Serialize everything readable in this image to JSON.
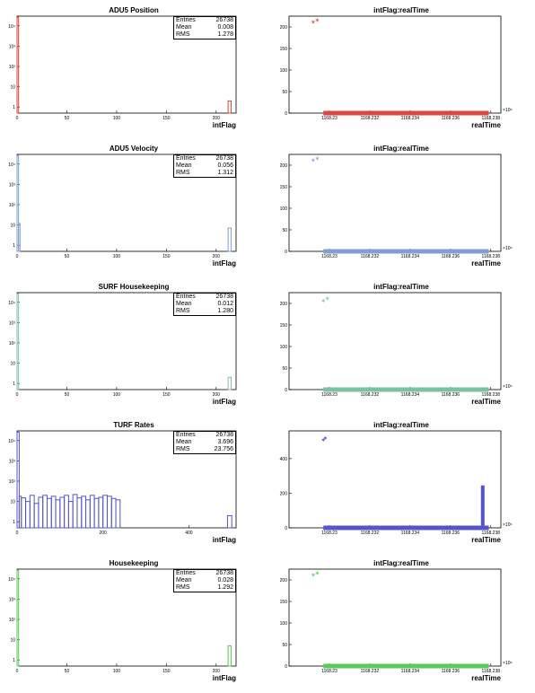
{
  "chart_data": [
    {
      "type": "histogram",
      "id": "h0",
      "title": "ADU5 Position",
      "xlabel": "intFlag",
      "ylabel": "",
      "color": "#d9473e",
      "log_y": true,
      "xlim": [
        0,
        220
      ],
      "ylim": [
        0.5,
        30000
      ],
      "xticks": [
        0,
        50,
        100,
        150,
        200
      ],
      "yticks": [
        {
          "v": 1,
          "t": "1"
        },
        {
          "v": 10,
          "t": "10"
        },
        {
          "v": 100,
          "t": "10²"
        },
        {
          "v": 1000,
          "t": "10³"
        },
        {
          "v": 10000,
          "t": "10⁴"
        }
      ],
      "stats": {
        "Entries": "26738",
        "Mean": "0.008",
        "RMS": "1.278"
      },
      "bins": [
        [
          0,
          1.5,
          26500
        ],
        [
          212,
          215,
          2
        ]
      ]
    },
    {
      "type": "scatter",
      "id": "s0",
      "title": "intFlag:realTime",
      "xlabel": "realTime",
      "color": "#d9473e",
      "xlim": [
        1168.228,
        1168.2385
      ],
      "ylim": [
        0,
        225
      ],
      "xticks": [
        {
          "v": 1168.23,
          "t": "1168.23"
        },
        {
          "v": 1168.232,
          "t": "1168.232"
        },
        {
          "v": 1168.234,
          "t": "1168.234"
        },
        {
          "v": 1168.236,
          "t": "1168.236"
        },
        {
          "v": 1168.238,
          "t": "1168.238"
        }
      ],
      "yticks": [
        0,
        50,
        100,
        150,
        200
      ],
      "x_multiplier": "×10⁶",
      "band": {
        "x": [
          1168.2297,
          1168.2379
        ],
        "y": 0
      },
      "points": [
        [
          1168.2292,
          210
        ],
        [
          1168.2294,
          215
        ]
      ]
    },
    {
      "type": "histogram",
      "id": "h1",
      "title": "ADU5 Velocity",
      "xlabel": "intFlag",
      "color": "#7f9fd5",
      "log_y": true,
      "xlim": [
        0,
        220
      ],
      "ylim": [
        0.5,
        30000
      ],
      "xticks": [
        0,
        50,
        100,
        150,
        200
      ],
      "yticks": [
        {
          "v": 1,
          "t": "1"
        },
        {
          "v": 10,
          "t": "10"
        },
        {
          "v": 100,
          "t": "10²"
        },
        {
          "v": 1000,
          "t": "10³"
        },
        {
          "v": 10000,
          "t": "10⁴"
        }
      ],
      "stats": {
        "Entries": "26738",
        "Mean": "0.056",
        "RMS": "1.312"
      },
      "bins": [
        [
          0,
          1.5,
          26500
        ],
        [
          1.5,
          3,
          12
        ],
        [
          212,
          215,
          7
        ]
      ]
    },
    {
      "type": "scatter",
      "id": "s1",
      "title": "intFlag:realTime",
      "xlabel": "realTime",
      "color": "#7f9fd5",
      "xlim": [
        1168.228,
        1168.2385
      ],
      "ylim": [
        0,
        225
      ],
      "xticks": [
        {
          "v": 1168.23,
          "t": "1168.23"
        },
        {
          "v": 1168.232,
          "t": "1168.232"
        },
        {
          "v": 1168.234,
          "t": "1168.234"
        },
        {
          "v": 1168.236,
          "t": "1168.236"
        },
        {
          "v": 1168.238,
          "t": "1168.238"
        }
      ],
      "yticks": [
        0,
        50,
        100,
        150,
        200
      ],
      "x_multiplier": "×10⁶",
      "band": {
        "x": [
          1168.2297,
          1168.2379
        ],
        "y": 0
      },
      "points": [
        [
          1168.2292,
          210
        ],
        [
          1168.2294,
          215
        ]
      ]
    },
    {
      "type": "histogram",
      "id": "h2",
      "title": "SURF Housekeeping",
      "xlabel": "intFlag",
      "color": "#7cc1a3",
      "log_y": true,
      "xlim": [
        0,
        220
      ],
      "ylim": [
        0.5,
        30000
      ],
      "xticks": [
        0,
        50,
        100,
        150,
        200
      ],
      "yticks": [
        {
          "v": 1,
          "t": "1"
        },
        {
          "v": 10,
          "t": "10"
        },
        {
          "v": 100,
          "t": "10²"
        },
        {
          "v": 1000,
          "t": "10³"
        },
        {
          "v": 10000,
          "t": "10⁴"
        }
      ],
      "stats": {
        "Entries": "26738",
        "Mean": "0.012",
        "RMS": "1.280"
      },
      "bins": [
        [
          0,
          1.5,
          26500
        ],
        [
          212,
          215,
          2
        ]
      ]
    },
    {
      "type": "scatter",
      "id": "s2",
      "title": "intFlag:realTime",
      "xlabel": "realTime",
      "color": "#7cc1a3",
      "xlim": [
        1168.228,
        1168.2385
      ],
      "ylim": [
        0,
        225
      ],
      "xticks": [
        {
          "v": 1168.23,
          "t": "1168.23"
        },
        {
          "v": 1168.232,
          "t": "1168.232"
        },
        {
          "v": 1168.234,
          "t": "1168.234"
        },
        {
          "v": 1168.236,
          "t": "1168.236"
        },
        {
          "v": 1168.238,
          "t": "1168.238"
        }
      ],
      "yticks": [
        0,
        50,
        100,
        150,
        200
      ],
      "x_multiplier": "×10⁶",
      "band": {
        "x": [
          1168.2297,
          1168.2379
        ],
        "y": 0
      },
      "points": [
        [
          1168.2297,
          205
        ],
        [
          1168.2299,
          210
        ]
      ]
    },
    {
      "type": "histogram",
      "id": "h3",
      "title": "TURF Rates",
      "xlabel": "intFlag",
      "color": "#5454cc",
      "log_y": true,
      "xlim": [
        0,
        510
      ],
      "ylim": [
        0.5,
        30000
      ],
      "xticks": [
        0,
        200,
        400
      ],
      "yticks": [
        {
          "v": 1,
          "t": "1"
        },
        {
          "v": 10,
          "t": "10"
        },
        {
          "v": 100,
          "t": "10²"
        },
        {
          "v": 1000,
          "t": "10³"
        },
        {
          "v": 10000,
          "t": "10⁴"
        }
      ],
      "stats": {
        "Entries": "26738",
        "Mean": "3.696",
        "RMS": "23.756"
      },
      "bins": [
        [
          0,
          5,
          26000
        ],
        [
          5,
          10,
          18
        ],
        [
          10,
          20,
          15
        ],
        [
          20,
          30,
          10
        ],
        [
          30,
          40,
          20
        ],
        [
          40,
          50,
          8
        ],
        [
          50,
          60,
          16
        ],
        [
          60,
          70,
          20
        ],
        [
          70,
          80,
          14
        ],
        [
          80,
          90,
          18
        ],
        [
          90,
          100,
          12
        ],
        [
          100,
          110,
          16
        ],
        [
          110,
          120,
          20
        ],
        [
          120,
          130,
          10
        ],
        [
          130,
          140,
          22
        ],
        [
          140,
          150,
          15
        ],
        [
          150,
          160,
          18
        ],
        [
          160,
          170,
          12
        ],
        [
          170,
          180,
          20
        ],
        [
          180,
          190,
          14
        ],
        [
          190,
          200,
          16
        ],
        [
          200,
          210,
          20
        ],
        [
          210,
          220,
          18
        ],
        [
          220,
          230,
          14
        ],
        [
          230,
          240,
          12
        ],
        [
          490,
          500,
          2
        ]
      ]
    },
    {
      "type": "scatter",
      "id": "s3",
      "title": "intFlag:realTime",
      "xlabel": "realTime",
      "color": "#5454cc",
      "xlim": [
        1168.228,
        1168.2385
      ],
      "ylim": [
        0,
        560
      ],
      "xticks": [
        {
          "v": 1168.23,
          "t": "1168.23"
        },
        {
          "v": 1168.232,
          "t": "1168.232"
        },
        {
          "v": 1168.234,
          "t": "1168.234"
        },
        {
          "v": 1168.236,
          "t": "1168.236"
        },
        {
          "v": 1168.238,
          "t": "1168.238"
        }
      ],
      "yticks": [
        0,
        200,
        400
      ],
      "x_multiplier": "×10⁶",
      "band": {
        "x": [
          1168.2297,
          1168.2379
        ],
        "y": 0
      },
      "wall": {
        "x": 1168.2376,
        "y0": 0,
        "y1": 245
      },
      "points": [
        [
          1168.2297,
          505
        ],
        [
          1168.2298,
          515
        ]
      ]
    },
    {
      "type": "histogram",
      "id": "h4",
      "title": "Housekeeping",
      "xlabel": "intFlag",
      "color": "#5cc95c",
      "log_y": true,
      "xlim": [
        0,
        220
      ],
      "ylim": [
        0.5,
        30000
      ],
      "xticks": [
        0,
        50,
        100,
        150,
        200
      ],
      "yticks": [
        {
          "v": 1,
          "t": "1"
        },
        {
          "v": 10,
          "t": "10"
        },
        {
          "v": 100,
          "t": "10²"
        },
        {
          "v": 1000,
          "t": "10³"
        },
        {
          "v": 10000,
          "t": "10⁴"
        }
      ],
      "stats": {
        "Entries": "26738",
        "Mean": "0.028",
        "RMS": "1.292"
      },
      "bins": [
        [
          0,
          1.5,
          26500
        ],
        [
          212,
          215,
          5
        ]
      ]
    },
    {
      "type": "scatter",
      "id": "s4",
      "title": "intFlag:realTime",
      "xlabel": "realTime",
      "color": "#5cc95c",
      "xlim": [
        1168.228,
        1168.2385
      ],
      "ylim": [
        0,
        225
      ],
      "xticks": [
        {
          "v": 1168.23,
          "t": "1168.23"
        },
        {
          "v": 1168.232,
          "t": "1168.232"
        },
        {
          "v": 1168.234,
          "t": "1168.234"
        },
        {
          "v": 1168.236,
          "t": "1168.236"
        },
        {
          "v": 1168.238,
          "t": "1168.238"
        }
      ],
      "yticks": [
        0,
        50,
        100,
        150,
        200
      ],
      "x_multiplier": "×10⁶",
      "band": {
        "x": [
          1168.2297,
          1168.2379
        ],
        "y": 0
      },
      "points": [
        [
          1168.2292,
          210
        ],
        [
          1168.2294,
          215
        ]
      ]
    }
  ]
}
